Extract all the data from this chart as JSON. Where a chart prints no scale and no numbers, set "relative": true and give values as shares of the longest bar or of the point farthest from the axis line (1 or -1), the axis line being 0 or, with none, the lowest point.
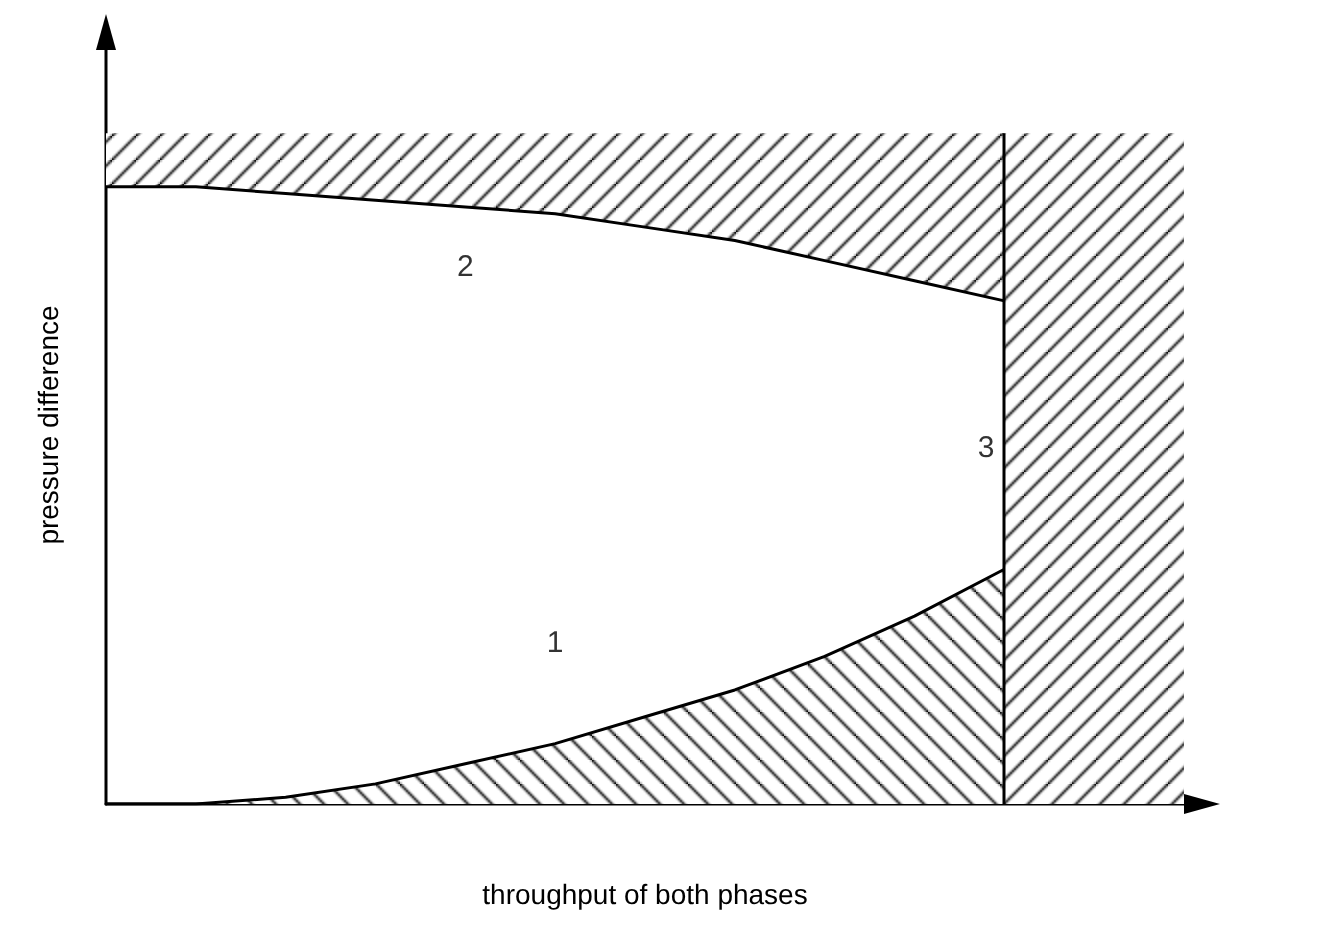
{
  "chart_data": {
    "type": "line",
    "relative": true,
    "xlabel": "throughput of both phases",
    "ylabel": "pressure difference",
    "categories": [
      null,
      null,
      null,
      null,
      null,
      null,
      null,
      null,
      null,
      null,
      null,
      null,
      null
    ],
    "series": [
      {
        "type": "area",
        "color": "#000000",
        "values": [
          0,
          0,
          0.01,
          0.03,
          0.06,
          0.09,
          0.13,
          0.17,
          0.22,
          0.28,
          0.35,
          null,
          null
        ]
      },
      {
        "color": "#000000",
        "values": [
          0.92,
          0.92,
          0.91,
          0.9,
          0.89,
          0.88,
          0.86,
          0.84,
          0.81,
          0.78,
          0.75,
          null,
          null
        ],
        "lower": [
          0.92,
          0.92,
          0.91,
          0.9,
          0.89,
          0.88,
          0.86,
          0.84,
          0.81,
          0.78,
          0.75,
          null,
          null
        ],
        "upper": [
          1,
          1,
          1,
          1,
          1,
          1,
          1,
          1,
          1,
          1,
          1,
          null,
          null
        ]
      },
      {
        "type": "area",
        "color": "#000000",
        "values": [
          null,
          null,
          null,
          null,
          null,
          null,
          null,
          null,
          null,
          null,
          1,
          1,
          1
        ]
      }
    ],
    "annotations": [
      "1",
      "2",
      "3"
    ],
    "grid": false,
    "marker": "none",
    "line_style": "solid"
  }
}
